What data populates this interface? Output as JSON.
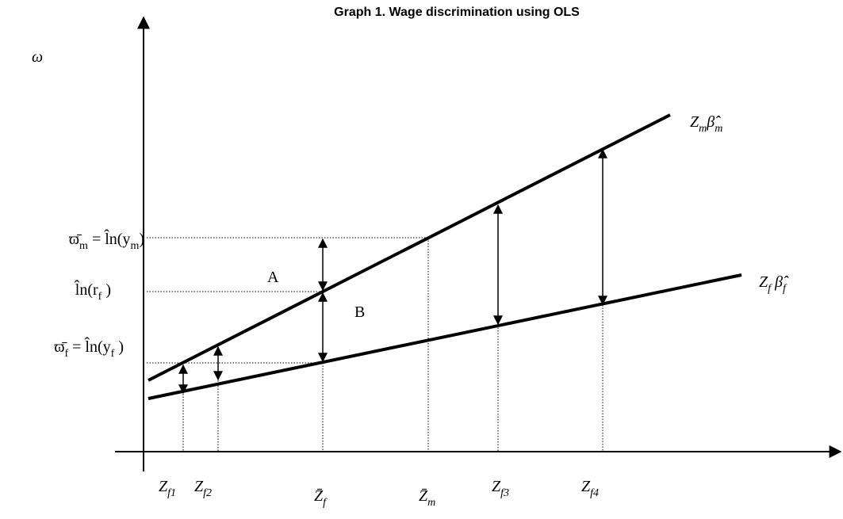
{
  "title": "Graph 1. Wage discrimination using OLS",
  "y_axis_label": "ω",
  "y_labels": [
    [
      {
        "text": "ϖ̄"
      },
      {
        "sub": "m"
      },
      {
        "text": " = l̂n(y"
      },
      {
        "sub": "m"
      },
      {
        "text": ")"
      }
    ],
    [
      {
        "text": "l̂n(r"
      },
      {
        "sub": "f"
      },
      {
        "text": " )"
      }
    ],
    [
      {
        "text": "ϖ̄"
      },
      {
        "sub": "f"
      },
      {
        "text": " = l̂n(y"
      },
      {
        "sub": "f"
      },
      {
        "text": " )"
      }
    ]
  ],
  "x_labels": [
    [
      {
        "text": "Z"
      },
      {
        "sub": "f1"
      }
    ],
    [
      {
        "text": "Z"
      },
      {
        "sub": "f2"
      }
    ],
    [
      {
        "text": "Z̄"
      },
      {
        "sub": "f"
      }
    ],
    [
      {
        "text": "Z̄"
      },
      {
        "sub": "m"
      }
    ],
    [
      {
        "text": "Z"
      },
      {
        "sub": "f3"
      }
    ],
    [
      {
        "text": "Z"
      },
      {
        "sub": "f4"
      }
    ]
  ],
  "line_labels": [
    [
      {
        "text": "Z"
      },
      {
        "sub": "m"
      },
      {
        "text": "β̂"
      },
      {
        "sub": "m"
      }
    ],
    [
      {
        "text": "Z"
      },
      {
        "sub": "f"
      },
      {
        "text": " β̂"
      },
      {
        "sub": "f"
      }
    ]
  ],
  "region_labels": [
    "A",
    "B"
  ]
}
